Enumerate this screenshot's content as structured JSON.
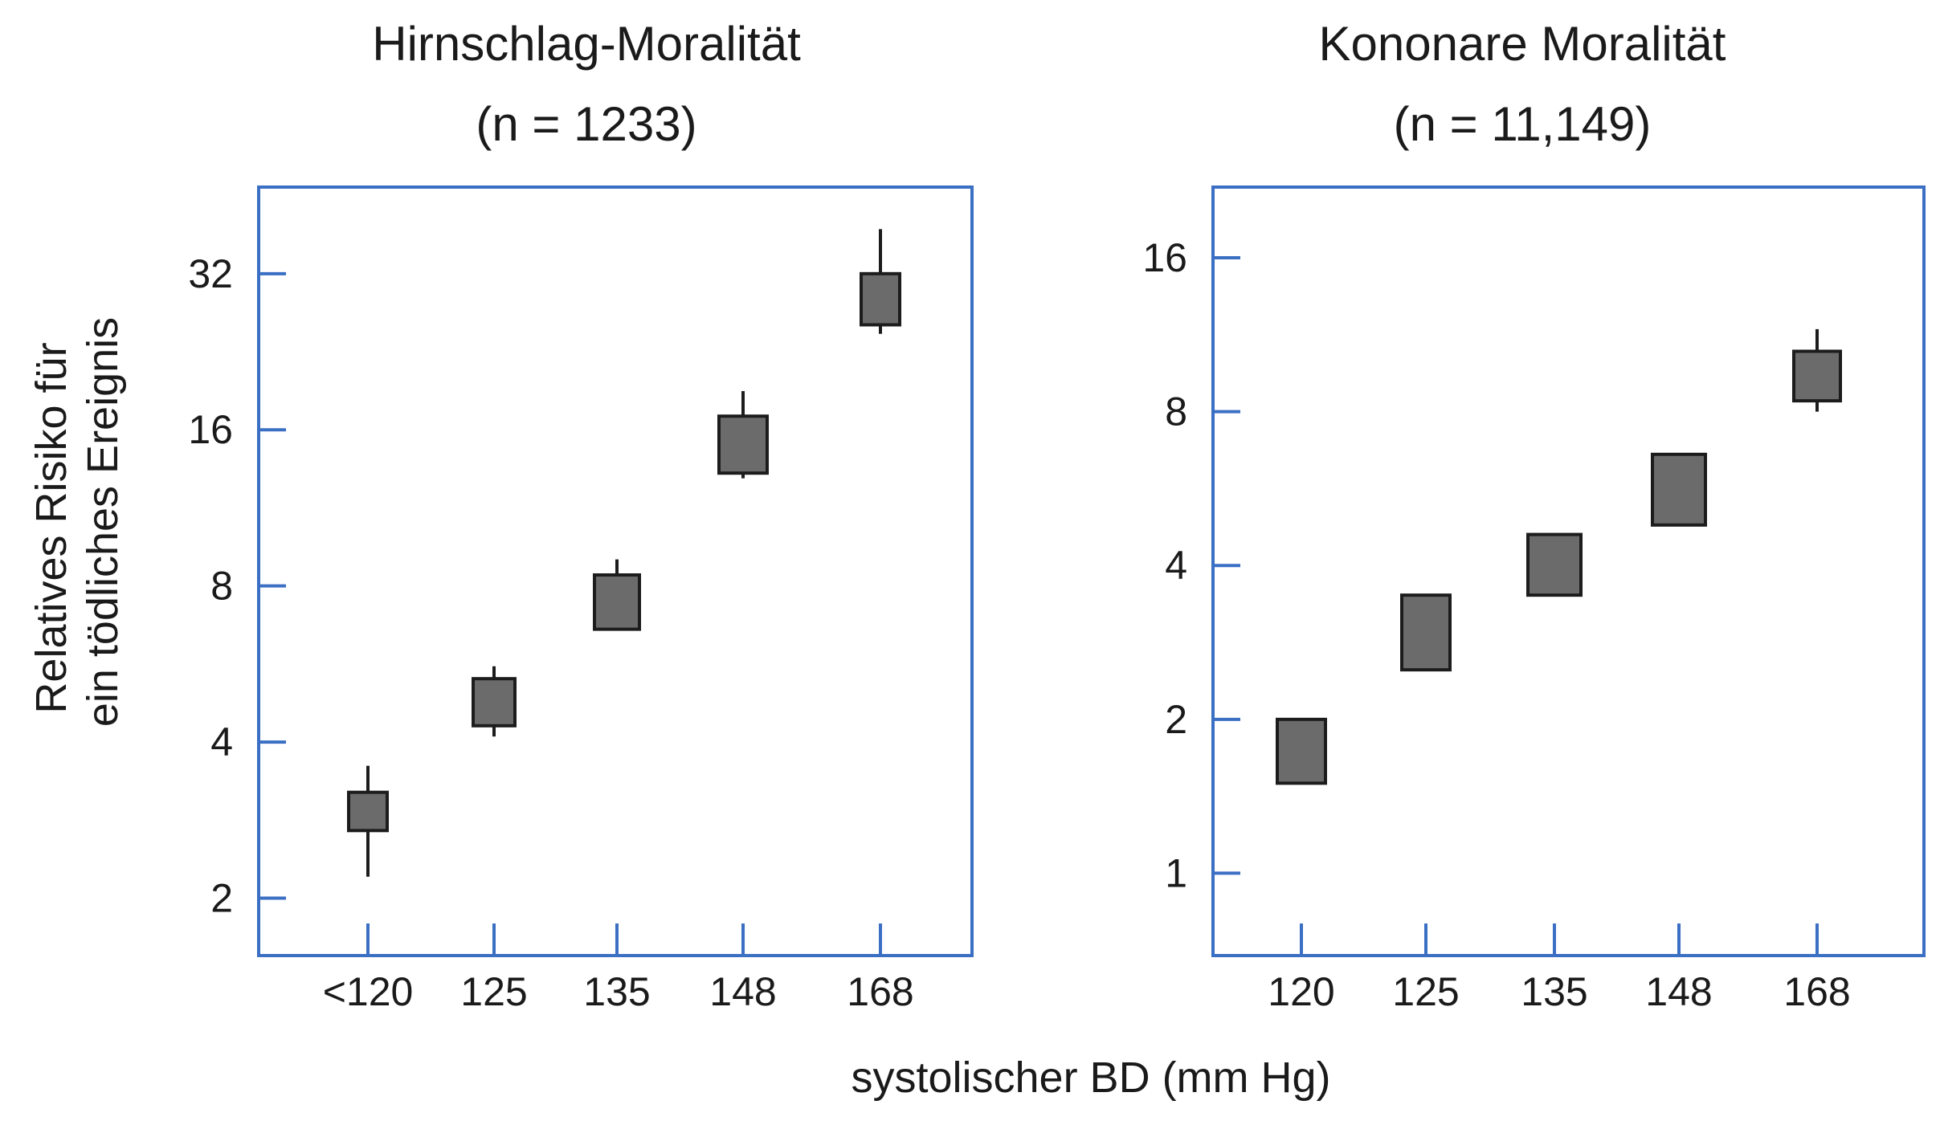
{
  "chart_data": [
    {
      "type": "box",
      "title": "Hirnschlag-Moralität",
      "subtitle": "(n = 1233)",
      "ylabel": "Relatives Risiko für\nein tödliches Ereignis",
      "yscale": "log2",
      "yticks": [
        2,
        4,
        8,
        16,
        32
      ],
      "ytick_labels": [
        "2",
        "4",
        "8",
        "16",
        "32"
      ],
      "categories": [
        "<120",
        "125",
        "135",
        "148",
        "168"
      ],
      "boxes": [
        {
          "low": 2.7,
          "high": 3.2,
          "whisker_low": 2.2,
          "whisker_high": 3.6
        },
        {
          "low": 4.3,
          "high": 5.3,
          "whisker_low": 4.1,
          "whisker_high": 5.6
        },
        {
          "low": 6.6,
          "high": 8.4,
          "whisker_low": 6.6,
          "whisker_high": 9.0
        },
        {
          "low": 13.2,
          "high": 17.0,
          "whisker_low": 12.9,
          "whisker_high": 19.0
        },
        {
          "low": 25.5,
          "high": 32.0,
          "whisker_low": 24.5,
          "whisker_high": 39.0
        }
      ]
    },
    {
      "type": "box",
      "title": "Kononare Moralität",
      "subtitle": "(n = 11,149)",
      "ylabel": "",
      "yscale": "log2",
      "yticks": [
        1,
        2,
        4,
        8,
        16
      ],
      "ytick_labels": [
        "1",
        "2",
        "4",
        "8",
        "16"
      ],
      "categories": [
        "120",
        "125",
        "135",
        "148",
        "168"
      ],
      "boxes": [
        {
          "low": 1.5,
          "high": 2.0,
          "whisker_low": 1.5,
          "whisker_high": 2.0
        },
        {
          "low": 2.5,
          "high": 3.5,
          "whisker_low": 2.5,
          "whisker_high": 3.5
        },
        {
          "low": 3.5,
          "high": 4.6,
          "whisker_low": 3.5,
          "whisker_high": 4.6
        },
        {
          "low": 4.8,
          "high": 6.6,
          "whisker_low": 4.8,
          "whisker_high": 6.6
        },
        {
          "low": 8.4,
          "high": 10.5,
          "whisker_low": 8.0,
          "whisker_high": 11.6
        }
      ]
    }
  ],
  "xlabel": "systolischer BD (mm Hg)"
}
